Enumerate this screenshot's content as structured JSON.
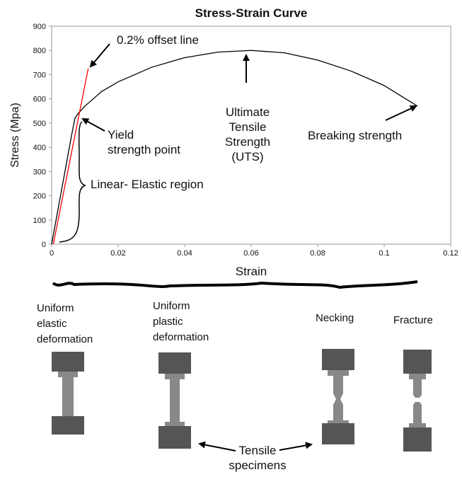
{
  "chart_data": {
    "type": "line",
    "title": "Stress-Strain Curve",
    "x_label": "Strain",
    "y_label": "Stress (Mpa)",
    "xlim": [
      0,
      0.12
    ],
    "ylim": [
      0,
      900
    ],
    "xticks": [
      0,
      0.02,
      0.04,
      0.06,
      0.08,
      0.1,
      0.12
    ],
    "yticks": [
      0,
      100,
      200,
      300,
      400,
      500,
      600,
      700,
      800,
      900
    ],
    "grid": false,
    "series": [
      {
        "color": "#000000",
        "x": [
          0,
          0.002,
          0.004,
          0.006,
          0.007,
          0.008,
          0.01,
          0.015,
          0.02,
          0.03,
          0.04,
          0.05,
          0.06,
          0.07,
          0.08,
          0.09,
          0.1,
          0.11
        ],
        "values": [
          0,
          150,
          300,
          450,
          520,
          540,
          570,
          630,
          670,
          730,
          770,
          793,
          800,
          790,
          760,
          715,
          655,
          570
        ]
      },
      {
        "color": "#ff0000",
        "x": [
          0.0005,
          0.011
        ],
        "values": [
          0,
          725
        ]
      }
    ],
    "annotations": [
      [
        "0.2% offset line"
      ],
      [
        "Yield",
        "strength point"
      ],
      [
        "Linear- Elastic region"
      ],
      [
        "Ultimate",
        "Tensile",
        "Strength",
        "(UTS)"
      ],
      [
        "Breaking strength"
      ]
    ]
  },
  "specimens": {
    "labels": [
      [
        "Uniform",
        "elastic",
        "deformation"
      ],
      [
        "Uniform",
        "plastic",
        "deformation"
      ],
      [
        "Necking"
      ],
      [
        "Fracture"
      ]
    ],
    "caption": [
      "Tensile",
      "specimens"
    ]
  }
}
